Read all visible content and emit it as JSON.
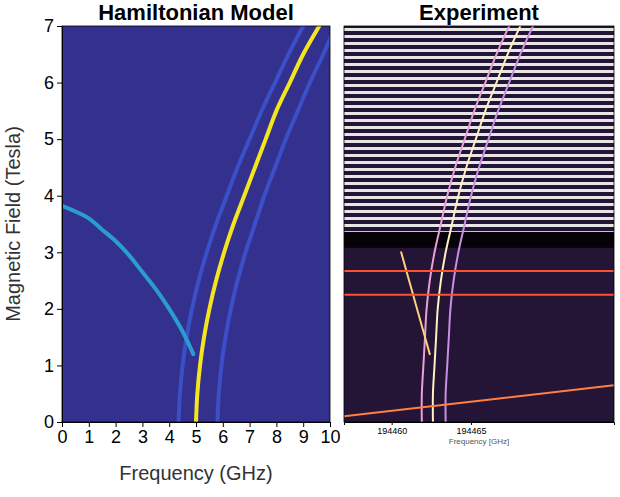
{
  "chart_data": [
    {
      "type": "line",
      "title": "Hamiltonian Model",
      "x_label": "Frequency (GHz)",
      "y_label": "Magnetic Field (Tesla)",
      "xlim": [
        0,
        10
      ],
      "ylim": [
        0,
        7
      ],
      "xticks": [
        0,
        1,
        2,
        3,
        4,
        5,
        6,
        7,
        8,
        9,
        10
      ],
      "yticks": [
        0,
        1,
        2,
        3,
        4,
        5,
        6,
        7
      ],
      "series": [
        {
          "color": "#3b4fc6",
          "x": [
            4.35,
            4.4,
            4.5,
            4.65,
            4.85,
            5.1,
            5.4,
            5.75,
            6.15,
            6.55,
            7.0,
            7.45,
            7.95,
            8.45,
            9.0
          ],
          "values": [
            0,
            0.5,
            1,
            1.5,
            2,
            2.5,
            3,
            3.5,
            4,
            4.5,
            5,
            5.5,
            6,
            6.5,
            7
          ]
        },
        {
          "color": "#3b4fc6",
          "x": [
            5.8,
            5.85,
            5.95,
            6.1,
            6.3,
            6.55,
            6.85,
            7.2,
            7.55,
            7.95,
            8.35,
            8.8,
            9.25,
            9.75,
            10.2
          ],
          "values": [
            0,
            0.5,
            1,
            1.5,
            2,
            2.5,
            3,
            3.5,
            4,
            4.5,
            5,
            5.5,
            6,
            6.5,
            7
          ]
        },
        {
          "color": "#2a9dcf",
          "x": [
            4.9,
            4.5,
            4.0,
            3.5,
            3.0,
            2.5,
            2.0,
            1.5,
            1.0,
            0.5,
            0
          ],
          "values": [
            1.2,
            1.6,
            2.0,
            2.35,
            2.65,
            2.95,
            3.2,
            3.4,
            3.6,
            3.72,
            3.82
          ]
        },
        {
          "color": "#f4e61e",
          "x": [
            5.0,
            5.05,
            5.15,
            5.3,
            5.5,
            5.75,
            6.05,
            6.4,
            6.8,
            7.2,
            7.6,
            8.0,
            8.5,
            9.0,
            9.6
          ],
          "values": [
            0,
            0.5,
            1,
            1.5,
            2,
            2.5,
            3,
            3.5,
            4,
            4.5,
            5,
            5.5,
            6,
            6.5,
            7
          ]
        }
      ]
    },
    {
      "type": "line",
      "title": "Experiment",
      "x_label": "Frequency [GHz]",
      "xlim": [
        194457,
        194474
      ],
      "ylim": [
        0,
        7
      ],
      "xticks": [
        194460,
        194465
      ],
      "tick_labels": "x",
      "series": [
        {
          "color": "#e8a0d8",
          "x": [
            194461.9,
            194461.9,
            194462.0,
            194462.1,
            194462.2,
            194462.4,
            194462.7,
            194463.1,
            194463.5,
            194464.0,
            194464.6,
            194465.2,
            194465.9,
            194466.6,
            194467.4
          ],
          "values": [
            0,
            0.5,
            1,
            1.5,
            2,
            2.5,
            3,
            3.5,
            4,
            4.5,
            5,
            5.5,
            6,
            6.5,
            7
          ]
        },
        {
          "color": "#fff2c0",
          "x": [
            194462.6,
            194462.6,
            194462.7,
            194462.8,
            194462.9,
            194463.1,
            194463.4,
            194463.8,
            194464.2,
            194464.7,
            194465.3,
            194465.9,
            194466.6,
            194467.3,
            194468.1
          ],
          "values": [
            0,
            0.5,
            1,
            1.5,
            2,
            2.5,
            3,
            3.5,
            4,
            4.5,
            5,
            5.5,
            6,
            6.5,
            7
          ]
        },
        {
          "color": "#c890e0",
          "x": [
            194463.4,
            194463.4,
            194463.5,
            194463.6,
            194463.7,
            194463.9,
            194464.2,
            194464.6,
            194465.0,
            194465.5,
            194466.1,
            194466.7,
            194467.4,
            194468.1,
            194468.9
          ],
          "values": [
            0,
            0.5,
            1,
            1.5,
            2,
            2.5,
            3,
            3.5,
            4,
            4.5,
            5,
            5.5,
            6,
            6.5,
            7
          ]
        },
        {
          "color": "#ffd080",
          "x": [
            194462.4,
            194461.8,
            194461.2,
            194460.6
          ],
          "values": [
            1.2,
            1.8,
            2.4,
            3.0
          ]
        },
        {
          "color": "#ff8040",
          "x": [
            194457,
            194474
          ],
          "values": [
            0.1,
            0.65
          ]
        },
        {
          "color": "#ff5030",
          "x": [
            194457,
            194474
          ],
          "values": [
            2.25,
            2.25
          ]
        },
        {
          "color": "#ff5030",
          "x": [
            194457,
            194474
          ],
          "values": [
            2.67,
            2.67
          ]
        }
      ]
    }
  ]
}
